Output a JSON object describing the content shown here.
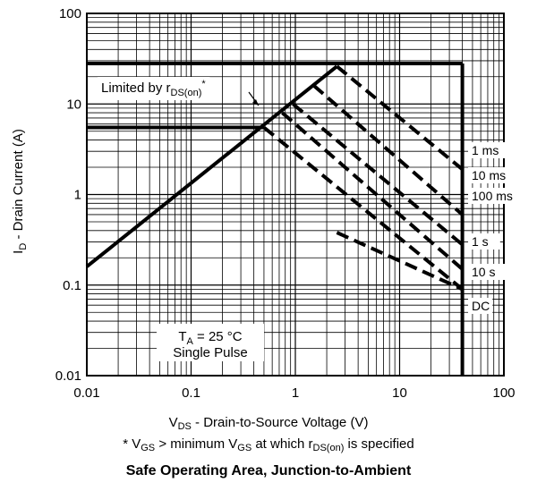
{
  "chart_data": {
    "type": "line",
    "title": "Safe Operating Area, Junction-to-Ambient",
    "xscale": "log",
    "yscale": "log",
    "xlim": [
      0.01,
      100
    ],
    "ylim": [
      0.01,
      100
    ],
    "grid": true,
    "x_ticks": [
      "0.01",
      "0.1",
      "1",
      "10",
      "100"
    ],
    "y_ticks": [
      "0.01",
      "0.1",
      "1",
      "10",
      "100"
    ],
    "xlabel": {
      "main": "V",
      "sub": "DS",
      "rest": " - Drain-to-Source Voltage (V)"
    },
    "ylabel": {
      "main": "I",
      "sub": "D",
      "rest": " - Drain Current (A)"
    },
    "footnote": {
      "p1": "* V",
      "s1": "GS",
      "p2": " > minimum V",
      "s2": "GS",
      "p3": " at which r",
      "s3": "DS(on)",
      "p4": " is specified"
    },
    "limited_label": {
      "main": "Limited by r",
      "sub": "DS(on)",
      "sup": "*"
    },
    "conditions": {
      "ta_main": "T",
      "ta_sub": "A",
      "ta_rest": " = 25 °C",
      "line2": "Single Pulse"
    },
    "series": [
      {
        "name": "Limited by rDS(on)*",
        "style": "solid",
        "x": [
          0.01,
          2.5
        ],
        "y": [
          0.16,
          26
        ]
      },
      {
        "name": "Current limit",
        "style": "solid",
        "x": [
          0.01,
          2.5,
          40
        ],
        "y": [
          28,
          28,
          28
        ]
      },
      {
        "name": "DC vertical",
        "style": "solid",
        "x": [
          40,
          40
        ],
        "y": [
          0.01,
          28
        ]
      },
      {
        "name": "Pulse current limit",
        "style": "solid",
        "x": [
          0.01,
          0.5
        ],
        "y": [
          5.5,
          5.5
        ]
      },
      {
        "name": "1 ms",
        "style": "dashed",
        "x": [
          2.5,
          40
        ],
        "y": [
          26,
          1.9
        ]
      },
      {
        "name": "10 ms",
        "style": "dashed",
        "x": [
          1.5,
          40
        ],
        "y": [
          16,
          0.6
        ]
      },
      {
        "name": "100 ms",
        "style": "dashed",
        "x": [
          0.95,
          40
        ],
        "y": [
          10,
          0.28
        ]
      },
      {
        "name": "1 s",
        "style": "dashed",
        "x": [
          0.75,
          40
        ],
        "y": [
          8,
          0.15
        ]
      },
      {
        "name": "10 s",
        "style": "dashed",
        "x": [
          0.5,
          40
        ],
        "y": [
          5.5,
          0.09
        ]
      },
      {
        "name": "DC",
        "style": "dashed",
        "x": [
          2.5,
          40
        ],
        "y": [
          0.38,
          0.09
        ]
      }
    ],
    "annotations": [
      "1 ms",
      "10 ms",
      "100 ms",
      "1 s",
      "10 s",
      "DC"
    ]
  }
}
